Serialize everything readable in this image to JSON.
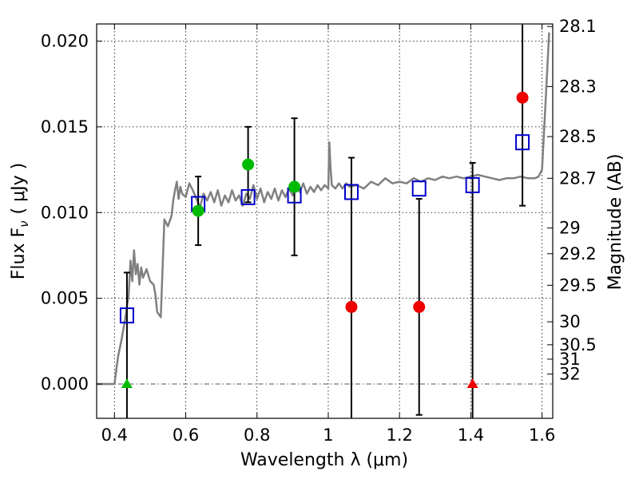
{
  "chart_data": {
    "type": "scatter",
    "xlabel": "Wavelength  λ (μm)",
    "ylabel": "Flux  F",
    "ylabel_sub": "ν",
    "ylabel_units": "( μJy )",
    "ylabel_right": "Magnitude (AB)",
    "xlim": [
      0.35,
      1.63
    ],
    "ylim": [
      -0.002,
      0.021
    ],
    "grid": true,
    "x_ticks": [
      {
        "value": 0.4,
        "label": "0.4"
      },
      {
        "value": 0.6,
        "label": "0.6"
      },
      {
        "value": 0.8,
        "label": "0.8"
      },
      {
        "value": 1.0,
        "label": "1"
      },
      {
        "value": 1.2,
        "label": "1.2"
      },
      {
        "value": 1.4,
        "label": "1.4"
      },
      {
        "value": 1.6,
        "label": "1.6"
      }
    ],
    "y_ticks": [
      {
        "value": 0.0,
        "label": "0.000"
      },
      {
        "value": 0.005,
        "label": "0.005"
      },
      {
        "value": 0.01,
        "label": "0.010"
      },
      {
        "value": 0.015,
        "label": "0.015"
      },
      {
        "value": 0.02,
        "label": "0.020"
      }
    ],
    "right_ticks": [
      {
        "flux": 0.02085,
        "label": "28.1"
      },
      {
        "flux": 0.01735,
        "label": "28.3"
      },
      {
        "flux": 0.01443,
        "label": "28.5"
      },
      {
        "flux": 0.012,
        "label": "28.7"
      },
      {
        "flux": 0.0091,
        "label": "29"
      },
      {
        "flux": 0.0076,
        "label": "29.2"
      },
      {
        "flux": 0.00576,
        "label": "29.5"
      },
      {
        "flux": 0.00363,
        "label": "30"
      },
      {
        "flux": 0.00229,
        "label": "30.5"
      },
      {
        "flux": 0.00145,
        "label": "31"
      },
      {
        "flux": 0.00058,
        "label": "32"
      }
    ],
    "model_spectrum": {
      "name": "model",
      "color": "#808080",
      "points": [
        [
          0.35,
          0.0
        ],
        [
          0.4,
          0.0
        ],
        [
          0.41,
          0.0016
        ],
        [
          0.42,
          0.0026
        ],
        [
          0.43,
          0.0038
        ],
        [
          0.44,
          0.0052
        ],
        [
          0.445,
          0.0072
        ],
        [
          0.45,
          0.006
        ],
        [
          0.455,
          0.0078
        ],
        [
          0.46,
          0.0064
        ],
        [
          0.465,
          0.007
        ],
        [
          0.47,
          0.0058
        ],
        [
          0.475,
          0.0068
        ],
        [
          0.48,
          0.0062
        ],
        [
          0.49,
          0.0067
        ],
        [
          0.5,
          0.006
        ],
        [
          0.51,
          0.0058
        ],
        [
          0.515,
          0.0052
        ],
        [
          0.52,
          0.0042
        ],
        [
          0.53,
          0.0039
        ],
        [
          0.54,
          0.0096
        ],
        [
          0.55,
          0.0092
        ],
        [
          0.56,
          0.0098
        ],
        [
          0.565,
          0.0107
        ],
        [
          0.57,
          0.0113
        ],
        [
          0.575,
          0.0118
        ],
        [
          0.58,
          0.0108
        ],
        [
          0.585,
          0.0115
        ],
        [
          0.59,
          0.0111
        ],
        [
          0.6,
          0.0109
        ],
        [
          0.61,
          0.0117
        ],
        [
          0.62,
          0.0113
        ],
        [
          0.63,
          0.0108
        ],
        [
          0.64,
          0.0103
        ],
        [
          0.65,
          0.0111
        ],
        [
          0.66,
          0.0107
        ],
        [
          0.67,
          0.0112
        ],
        [
          0.68,
          0.0106
        ],
        [
          0.69,
          0.0113
        ],
        [
          0.7,
          0.0104
        ],
        [
          0.71,
          0.011
        ],
        [
          0.72,
          0.0106
        ],
        [
          0.73,
          0.0113
        ],
        [
          0.74,
          0.0107
        ],
        [
          0.75,
          0.011
        ],
        [
          0.76,
          0.0104
        ],
        [
          0.77,
          0.0111
        ],
        [
          0.78,
          0.0108
        ],
        [
          0.79,
          0.0116
        ],
        [
          0.8,
          0.0108
        ],
        [
          0.81,
          0.0114
        ],
        [
          0.82,
          0.0106
        ],
        [
          0.83,
          0.0112
        ],
        [
          0.84,
          0.0108
        ],
        [
          0.85,
          0.0114
        ],
        [
          0.86,
          0.0107
        ],
        [
          0.87,
          0.0113
        ],
        [
          0.88,
          0.0109
        ],
        [
          0.89,
          0.0114
        ],
        [
          0.9,
          0.011
        ],
        [
          0.91,
          0.0115
        ],
        [
          0.92,
          0.0112
        ],
        [
          0.93,
          0.0117
        ],
        [
          0.94,
          0.0111
        ],
        [
          0.95,
          0.0115
        ],
        [
          0.96,
          0.0112
        ],
        [
          0.97,
          0.0116
        ],
        [
          0.98,
          0.0113
        ],
        [
          0.99,
          0.0116
        ],
        [
          1.0,
          0.0114
        ],
        [
          1.003,
          0.0141
        ],
        [
          1.006,
          0.0128
        ],
        [
          1.01,
          0.0116
        ],
        [
          1.02,
          0.0114
        ],
        [
          1.03,
          0.0117
        ],
        [
          1.04,
          0.0114
        ],
        [
          1.05,
          0.0117
        ],
        [
          1.06,
          0.0115
        ],
        [
          1.08,
          0.0116
        ],
        [
          1.1,
          0.0114
        ],
        [
          1.12,
          0.0118
        ],
        [
          1.14,
          0.0116
        ],
        [
          1.16,
          0.012
        ],
        [
          1.18,
          0.0117
        ],
        [
          1.2,
          0.0118
        ],
        [
          1.22,
          0.0117
        ],
        [
          1.24,
          0.012
        ],
        [
          1.26,
          0.0118
        ],
        [
          1.28,
          0.012
        ],
        [
          1.3,
          0.0119
        ],
        [
          1.32,
          0.0121
        ],
        [
          1.34,
          0.012
        ],
        [
          1.36,
          0.0121
        ],
        [
          1.38,
          0.012
        ],
        [
          1.4,
          0.0121
        ],
        [
          1.42,
          0.0122
        ],
        [
          1.44,
          0.0121
        ],
        [
          1.46,
          0.012
        ],
        [
          1.48,
          0.0119
        ],
        [
          1.5,
          0.012
        ],
        [
          1.52,
          0.012
        ],
        [
          1.54,
          0.0121
        ],
        [
          1.56,
          0.012
        ],
        [
          1.58,
          0.012
        ],
        [
          1.59,
          0.0121
        ],
        [
          1.6,
          0.0125
        ],
        [
          1.61,
          0.0165
        ],
        [
          1.62,
          0.0205
        ]
      ]
    },
    "model_photometry": {
      "name": "model photometry",
      "color": "#0000cc",
      "marker": "open-square",
      "points": [
        [
          0.435,
          0.004
        ],
        [
          0.635,
          0.0105
        ],
        [
          0.775,
          0.0109
        ],
        [
          0.905,
          0.011
        ],
        [
          1.065,
          0.0112
        ],
        [
          1.255,
          0.0114
        ],
        [
          1.405,
          0.0116
        ],
        [
          1.545,
          0.0141
        ]
      ]
    },
    "observed_photometry": [
      {
        "x": 0.435,
        "y": 0.0,
        "err": 0.0065,
        "color": "#00bb00",
        "marker": "triangle"
      },
      {
        "x": 0.635,
        "y": 0.0101,
        "err": 0.002,
        "color": "#00bb00",
        "marker": "circle"
      },
      {
        "x": 0.775,
        "y": 0.0128,
        "err": 0.0022,
        "color": "#00bb00",
        "marker": "circle"
      },
      {
        "x": 0.905,
        "y": 0.0115,
        "err": 0.004,
        "color": "#00bb00",
        "marker": "circle"
      },
      {
        "x": 1.065,
        "y": 0.0045,
        "err": 0.0087,
        "color": "#ee0000",
        "marker": "circle"
      },
      {
        "x": 1.255,
        "y": 0.0045,
        "err": 0.0063,
        "color": "#ee0000",
        "marker": "circle"
      },
      {
        "x": 1.405,
        "y": 0.0,
        "err": 0.0129,
        "color": "#ee0000",
        "marker": "triangle"
      },
      {
        "x": 1.545,
        "y": 0.0167,
        "err": 0.0063,
        "color": "#ee0000",
        "marker": "circle"
      }
    ],
    "zero_line": {
      "y": 0.0,
      "style": "dash-dot",
      "color": "#555555"
    }
  }
}
